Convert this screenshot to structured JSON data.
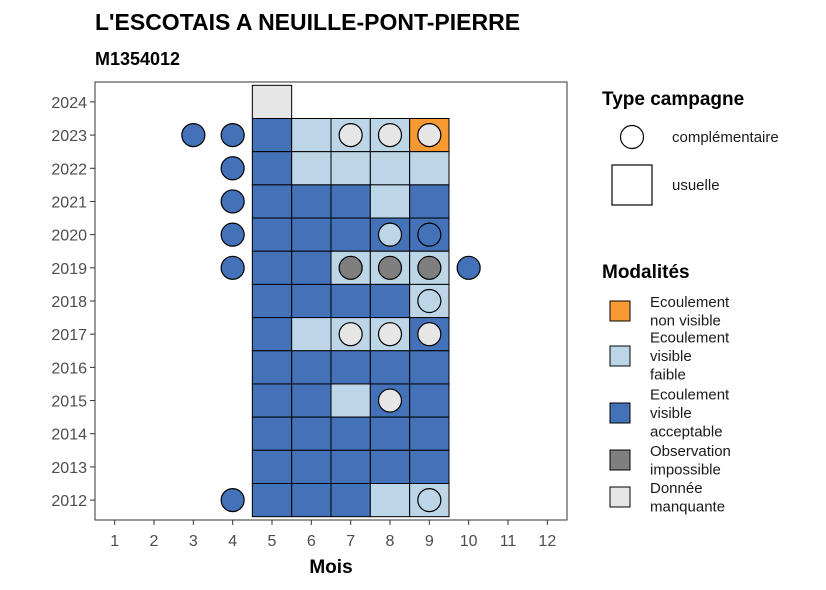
{
  "chart_data": {
    "type": "heatmap",
    "title": "L'ESCOTAIS A NEUILLE-PONT-PIERRE",
    "subtitle": "M1354012",
    "xlabel": "Mois",
    "ylabel": "",
    "x_ticks": [
      1,
      2,
      3,
      4,
      5,
      6,
      7,
      8,
      9,
      10,
      11,
      12
    ],
    "y_ticks": [
      2012,
      2013,
      2014,
      2015,
      2016,
      2017,
      2018,
      2019,
      2020,
      2021,
      2022,
      2023,
      2024
    ],
    "xlim": [
      0.5,
      12.5
    ],
    "ylim": [
      2011.4,
      2024.6
    ],
    "grid": false,
    "legend_position": "right",
    "legend_shape": {
      "title": "Type campagne",
      "entries": [
        {
          "key": "complementaire",
          "label": "complémentaire",
          "shape": "circle"
        },
        {
          "key": "usuelle",
          "label": "usuelle",
          "shape": "square"
        }
      ]
    },
    "legend_fill": {
      "title": "Modalités",
      "entries": [
        {
          "key": "ENV",
          "lines": [
            "Ecoulement",
            "non visible"
          ],
          "color": "#f89a33"
        },
        {
          "key": "EVF",
          "lines": [
            "Ecoulement",
            "visible",
            "faible"
          ],
          "color": "#bcd6e8"
        },
        {
          "key": "EVA",
          "lines": [
            "Ecoulement",
            "visible",
            "acceptable"
          ],
          "color": "#4472b8"
        },
        {
          "key": "OI",
          "lines": [
            "Observation",
            "impossible"
          ],
          "color": "#7f7f7f"
        },
        {
          "key": "DM",
          "lines": [
            "Donnée",
            "manquante"
          ],
          "color": "#e6e6e6"
        }
      ]
    },
    "usuelle": [
      {
        "year": 2024,
        "month": 5,
        "value": "DM"
      },
      {
        "year": 2023,
        "month": 5,
        "value": "EVA"
      },
      {
        "year": 2023,
        "month": 6,
        "value": "EVF"
      },
      {
        "year": 2023,
        "month": 7,
        "value": "EVF"
      },
      {
        "year": 2023,
        "month": 8,
        "value": "EVF"
      },
      {
        "year": 2023,
        "month": 9,
        "value": "ENV"
      },
      {
        "year": 2022,
        "month": 5,
        "value": "EVA"
      },
      {
        "year": 2022,
        "month": 6,
        "value": "EVF"
      },
      {
        "year": 2022,
        "month": 7,
        "value": "EVF"
      },
      {
        "year": 2022,
        "month": 8,
        "value": "EVF"
      },
      {
        "year": 2022,
        "month": 9,
        "value": "EVF"
      },
      {
        "year": 2021,
        "month": 5,
        "value": "EVA"
      },
      {
        "year": 2021,
        "month": 6,
        "value": "EVA"
      },
      {
        "year": 2021,
        "month": 7,
        "value": "EVA"
      },
      {
        "year": 2021,
        "month": 8,
        "value": "EVF"
      },
      {
        "year": 2021,
        "month": 9,
        "value": "EVA"
      },
      {
        "year": 2020,
        "month": 5,
        "value": "EVA"
      },
      {
        "year": 2020,
        "month": 6,
        "value": "EVA"
      },
      {
        "year": 2020,
        "month": 7,
        "value": "EVA"
      },
      {
        "year": 2020,
        "month": 8,
        "value": "EVA"
      },
      {
        "year": 2020,
        "month": 9,
        "value": "EVA"
      },
      {
        "year": 2019,
        "month": 5,
        "value": "EVA"
      },
      {
        "year": 2019,
        "month": 6,
        "value": "EVA"
      },
      {
        "year": 2019,
        "month": 7,
        "value": "EVF"
      },
      {
        "year": 2019,
        "month": 8,
        "value": "EVF"
      },
      {
        "year": 2019,
        "month": 9,
        "value": "EVF"
      },
      {
        "year": 2018,
        "month": 5,
        "value": "EVA"
      },
      {
        "year": 2018,
        "month": 6,
        "value": "EVA"
      },
      {
        "year": 2018,
        "month": 7,
        "value": "EVA"
      },
      {
        "year": 2018,
        "month": 8,
        "value": "EVA"
      },
      {
        "year": 2018,
        "month": 9,
        "value": "EVF"
      },
      {
        "year": 2017,
        "month": 5,
        "value": "EVA"
      },
      {
        "year": 2017,
        "month": 6,
        "value": "EVF"
      },
      {
        "year": 2017,
        "month": 7,
        "value": "EVF"
      },
      {
        "year": 2017,
        "month": 8,
        "value": "EVF"
      },
      {
        "year": 2017,
        "month": 9,
        "value": "EVA"
      },
      {
        "year": 2016,
        "month": 5,
        "value": "EVA"
      },
      {
        "year": 2016,
        "month": 6,
        "value": "EVA"
      },
      {
        "year": 2016,
        "month": 7,
        "value": "EVA"
      },
      {
        "year": 2016,
        "month": 8,
        "value": "EVA"
      },
      {
        "year": 2016,
        "month": 9,
        "value": "EVA"
      },
      {
        "year": 2015,
        "month": 5,
        "value": "EVA"
      },
      {
        "year": 2015,
        "month": 6,
        "value": "EVA"
      },
      {
        "year": 2015,
        "month": 7,
        "value": "EVF"
      },
      {
        "year": 2015,
        "month": 8,
        "value": "EVA"
      },
      {
        "year": 2015,
        "month": 9,
        "value": "EVA"
      },
      {
        "year": 2014,
        "month": 5,
        "value": "EVA"
      },
      {
        "year": 2014,
        "month": 6,
        "value": "EVA"
      },
      {
        "year": 2014,
        "month": 7,
        "value": "EVA"
      },
      {
        "year": 2014,
        "month": 8,
        "value": "EVA"
      },
      {
        "year": 2014,
        "month": 9,
        "value": "EVA"
      },
      {
        "year": 2013,
        "month": 5,
        "value": "EVA"
      },
      {
        "year": 2013,
        "month": 6,
        "value": "EVA"
      },
      {
        "year": 2013,
        "month": 7,
        "value": "EVA"
      },
      {
        "year": 2013,
        "month": 8,
        "value": "EVA"
      },
      {
        "year": 2013,
        "month": 9,
        "value": "EVA"
      },
      {
        "year": 2012,
        "month": 5,
        "value": "EVA"
      },
      {
        "year": 2012,
        "month": 6,
        "value": "EVA"
      },
      {
        "year": 2012,
        "month": 7,
        "value": "EVA"
      },
      {
        "year": 2012,
        "month": 8,
        "value": "EVF"
      },
      {
        "year": 2012,
        "month": 9,
        "value": "EVF"
      }
    ],
    "complementaire": [
      {
        "year": 2023,
        "month": 3,
        "value": "EVA"
      },
      {
        "year": 2023,
        "month": 4,
        "value": "EVA"
      },
      {
        "year": 2023,
        "month": 7,
        "value": "DM"
      },
      {
        "year": 2023,
        "month": 8,
        "value": "DM"
      },
      {
        "year": 2023,
        "month": 9,
        "value": "DM"
      },
      {
        "year": 2022,
        "month": 4,
        "value": "EVA"
      },
      {
        "year": 2021,
        "month": 4,
        "value": "EVA"
      },
      {
        "year": 2020,
        "month": 4,
        "value": "EVA"
      },
      {
        "year": 2020,
        "month": 8,
        "value": "EVF"
      },
      {
        "year": 2020,
        "month": 9,
        "value": "EVA"
      },
      {
        "year": 2019,
        "month": 4,
        "value": "EVA"
      },
      {
        "year": 2019,
        "month": 7,
        "value": "OI"
      },
      {
        "year": 2019,
        "month": 8,
        "value": "OI"
      },
      {
        "year": 2019,
        "month": 9,
        "value": "OI"
      },
      {
        "year": 2019,
        "month": 10,
        "value": "EVA"
      },
      {
        "year": 2018,
        "month": 9,
        "value": "EVF"
      },
      {
        "year": 2017,
        "month": 7,
        "value": "DM"
      },
      {
        "year": 2017,
        "month": 8,
        "value": "DM"
      },
      {
        "year": 2017,
        "month": 9,
        "value": "DM"
      },
      {
        "year": 2015,
        "month": 8,
        "value": "DM"
      },
      {
        "year": 2012,
        "month": 4,
        "value": "EVA"
      },
      {
        "year": 2012,
        "month": 9,
        "value": "EVF"
      }
    ]
  }
}
